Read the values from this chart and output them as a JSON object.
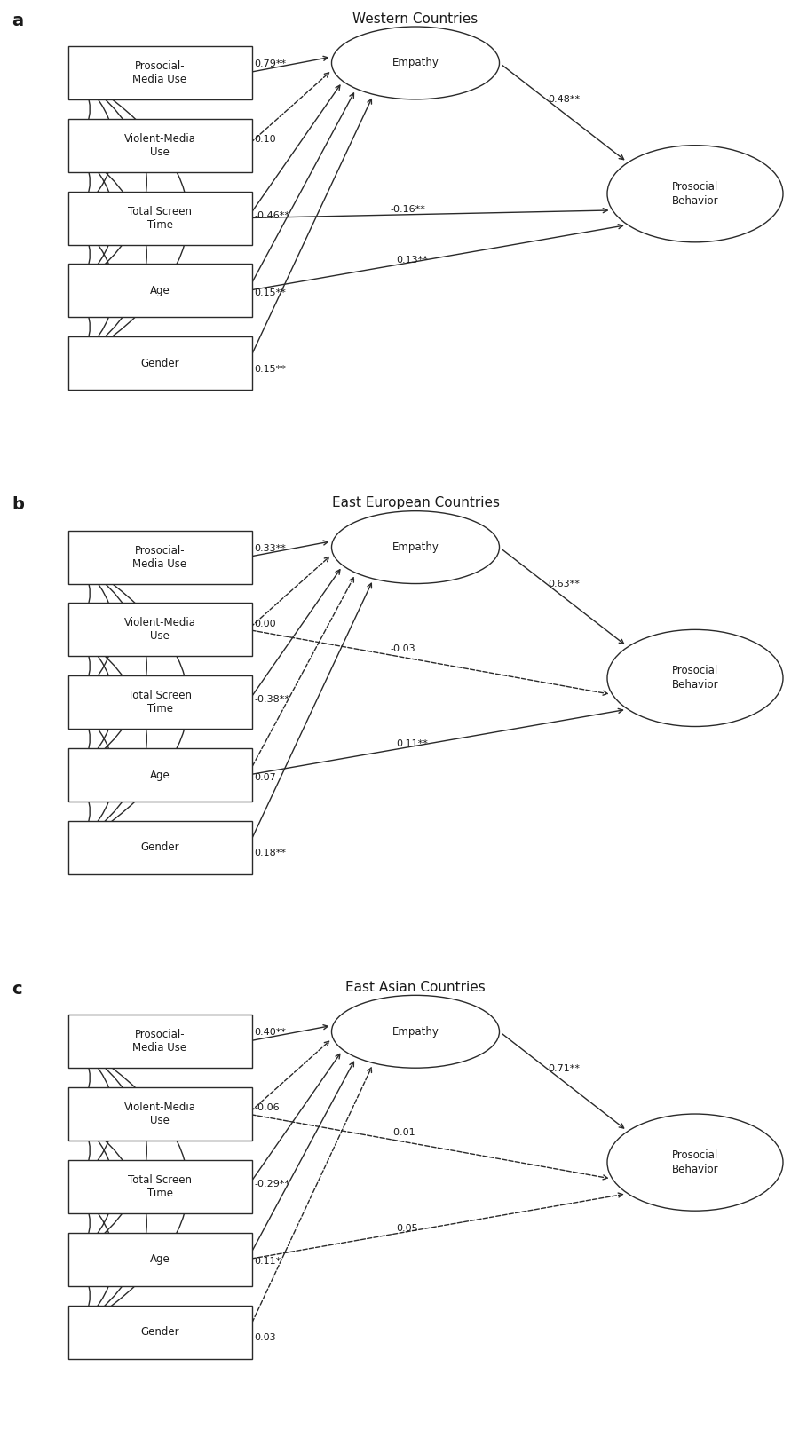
{
  "panels": [
    {
      "label": "a",
      "title": "Western Countries",
      "predictors": [
        "Prosocial-\nMedia Use",
        "Violent-Media\nUse",
        "Total Screen\nTime",
        "Age",
        "Gender"
      ],
      "to_empathy": [
        {
          "coef": "0.79**",
          "solid": true
        },
        {
          "coef": "0.10",
          "solid": false
        },
        {
          "coef": "-0.46**",
          "solid": true
        },
        {
          "coef": "0.15**",
          "solid": true
        },
        {
          "coef": "0.15**",
          "solid": true
        }
      ],
      "to_prosocial": [
        {
          "coef": "-0.16**",
          "solid": true
        },
        {
          "coef": "0.13**",
          "solid": true
        }
      ],
      "to_prosocial_from": [
        2,
        3
      ],
      "empathy_to_prosocial": {
        "coef": "0.48**",
        "solid": true
      }
    },
    {
      "label": "b",
      "title": "East European Countries",
      "predictors": [
        "Prosocial-\nMedia Use",
        "Violent-Media\nUse",
        "Total Screen\nTime",
        "Age",
        "Gender"
      ],
      "to_empathy": [
        {
          "coef": "0.33**",
          "solid": true
        },
        {
          "coef": "0.00",
          "solid": false
        },
        {
          "coef": "-0.38**",
          "solid": true
        },
        {
          "coef": "0.07",
          "solid": false
        },
        {
          "coef": "0.18**",
          "solid": true
        }
      ],
      "to_prosocial": [
        {
          "coef": "-0.03",
          "solid": false
        },
        {
          "coef": "0.11**",
          "solid": true
        }
      ],
      "to_prosocial_from": [
        1,
        3
      ],
      "empathy_to_prosocial": {
        "coef": "0.63**",
        "solid": true
      }
    },
    {
      "label": "c",
      "title": "East Asian Countries",
      "predictors": [
        "Prosocial-\nMedia Use",
        "Violent-Media\nUse",
        "Total Screen\nTime",
        "Age",
        "Gender"
      ],
      "to_empathy": [
        {
          "coef": "0.40**",
          "solid": true
        },
        {
          "coef": "-0.06",
          "solid": false
        },
        {
          "coef": "-0.29**",
          "solid": true
        },
        {
          "coef": "0.11*",
          "solid": true
        },
        {
          "coef": "0.03",
          "solid": false
        }
      ],
      "to_prosocial": [
        {
          "coef": "-0.01",
          "solid": false
        },
        {
          "coef": "0.05",
          "solid": false
        }
      ],
      "to_prosocial_from": [
        1,
        3
      ],
      "empathy_to_prosocial": {
        "coef": "0.71**",
        "solid": true
      }
    }
  ],
  "bg_color": "#ffffff",
  "box_color": "#ffffff",
  "line_color": "#2a2a2a",
  "text_color": "#1a1a1a",
  "font_size": 8.5,
  "title_font_size": 11,
  "label_font_size": 14
}
